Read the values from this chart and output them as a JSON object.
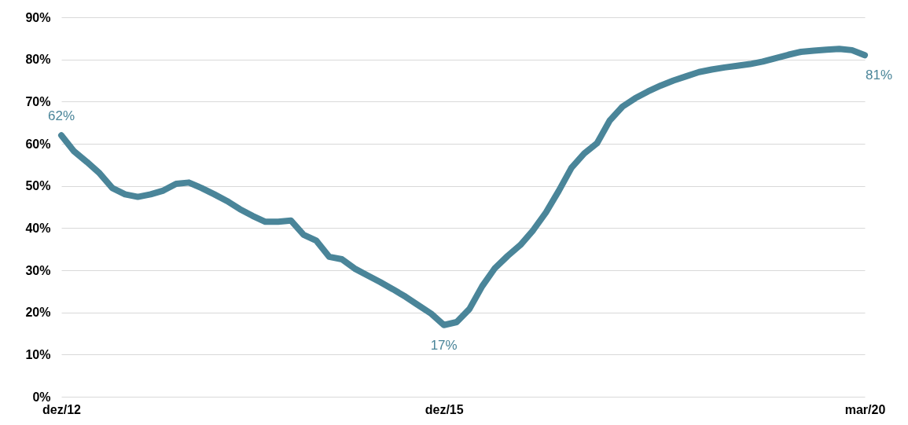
{
  "chart_data": {
    "type": "line",
    "categories": [
      "dez/12",
      null,
      null,
      null,
      null,
      null,
      null,
      null,
      null,
      null,
      null,
      null,
      null,
      null,
      null,
      null,
      null,
      null,
      null,
      null,
      null,
      null,
      null,
      null,
      null,
      null,
      null,
      null,
      null,
      null,
      "dez/15",
      null,
      null,
      null,
      null,
      null,
      null,
      null,
      null,
      null,
      null,
      null,
      null,
      null,
      null,
      null,
      null,
      null,
      null,
      null,
      null,
      null,
      null,
      null,
      null,
      null,
      null,
      null,
      null,
      null,
      null,
      null,
      null,
      "mar/20"
    ],
    "series": [
      {
        "color": "#4a8599",
        "values": [
          62,
          58.2,
          55.7,
          53,
          49.5,
          48,
          47.4,
          48,
          48.9,
          50.5,
          50.8,
          49.5,
          48,
          46.4,
          44.5,
          42.9,
          41.5,
          41.5,
          41.8,
          38.4,
          37,
          33.2,
          32.6,
          30.4,
          28.8,
          27.2,
          25.5,
          23.7,
          21.7,
          19.7,
          17,
          17.7,
          20.8,
          26.2,
          30.5,
          33.4,
          36,
          39.5,
          43.7,
          48.8,
          54.3,
          57.7,
          60.1,
          65.5,
          68.8,
          70.8,
          72.4,
          73.8,
          75,
          76,
          77,
          77.6,
          78.1,
          78.5,
          78.9,
          79.5,
          80.3,
          81.1,
          81.8,
          82.1,
          82.3,
          82.5,
          82.2,
          81
        ]
      }
    ],
    "ylim": [
      0,
      90
    ],
    "yticks": [
      {
        "value": 0,
        "label": "0%"
      },
      {
        "value": 10,
        "label": "10%"
      },
      {
        "value": 20,
        "label": "20%"
      },
      {
        "value": 30,
        "label": "30%"
      },
      {
        "value": 40,
        "label": "40%"
      },
      {
        "value": 50,
        "label": "50%"
      },
      {
        "value": 60,
        "label": "60%"
      },
      {
        "value": 70,
        "label": "70%"
      },
      {
        "value": 80,
        "label": "80%"
      },
      {
        "value": 90,
        "label": "90%"
      }
    ],
    "grid": "y",
    "marker": "none",
    "line_style": "solid",
    "annotations": [
      {
        "text": "62%",
        "x": "dez/12",
        "y": 62
      },
      {
        "text": "17%",
        "x": "dez/15",
        "y": 17
      },
      {
        "text": "81%",
        "x": "mar/20",
        "y": 81
      }
    ]
  }
}
